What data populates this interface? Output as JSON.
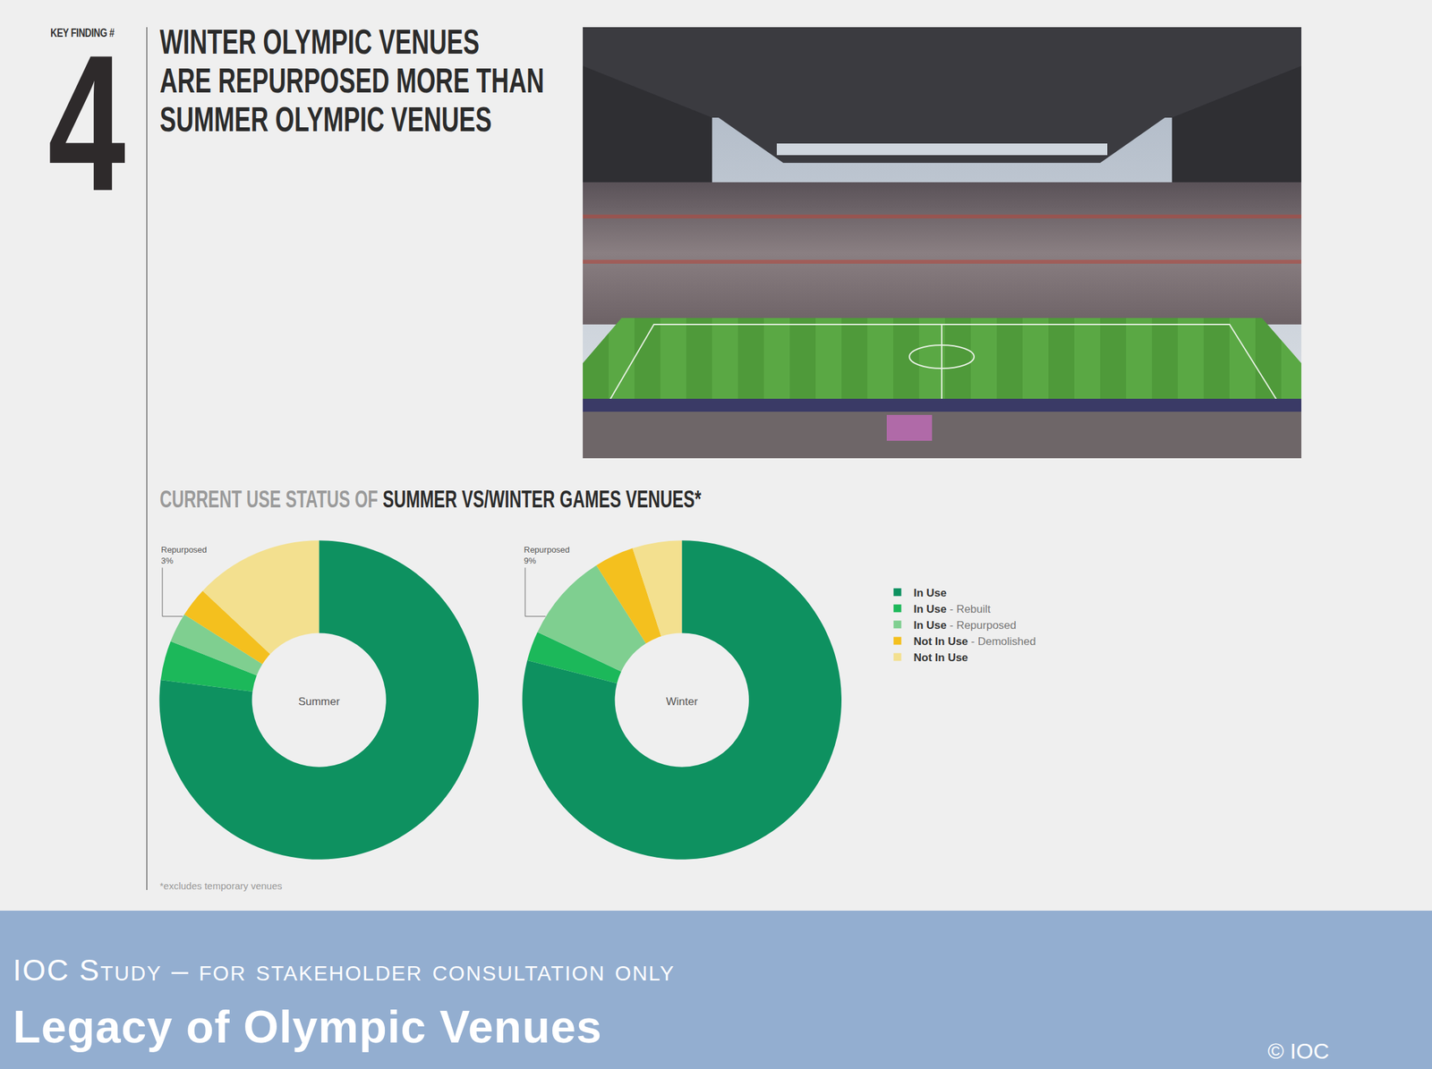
{
  "slide": {
    "key_finding_label": "KEY FINDING #",
    "key_finding_number": "4",
    "title": [
      "WINTER OLYMPIC VENUES",
      "ARE REPURPOSED MORE THAN",
      "SUMMER OLYMPIC VENUES"
    ],
    "subtitle": [
      "CURRENT USE STATUS OF ",
      "SUMMER VS/WINTER GAMES VENUES*"
    ],
    "footnote": "*excludes temporary venues",
    "footer": {
      "line1": "IOC Study – for stakeholder consultation only",
      "line2": "Legacy of Olympic Venues",
      "copyright": "© IOC"
    }
  },
  "chart_data": [
    {
      "type": "donut",
      "title": "Summer",
      "categories": [
        "In Use",
        "In Use - Rebuilt",
        "In Use - Repurposed",
        "Not In Use - Demolished",
        "Not In Use"
      ],
      "values": [
        77,
        4,
        3,
        3,
        13
      ],
      "value_labels": [
        null,
        null,
        "3%",
        null,
        null
      ],
      "annotations": [
        "Repurposed"
      ],
      "colors": [
        "#0e9160",
        "#1cb85a",
        "#7fcf90",
        "#f4c01e",
        "#f3e08f"
      ],
      "legend": "right"
    },
    {
      "type": "donut",
      "title": "Winter",
      "categories": [
        "In Use",
        "In Use - Rebuilt",
        "In Use - Repurposed",
        "Not In Use - Demolished",
        "Not In Use"
      ],
      "values": [
        79,
        3,
        9,
        4,
        5
      ],
      "value_labels": [
        null,
        null,
        "9%",
        null,
        null
      ],
      "annotations": [
        "Repurposed"
      ],
      "colors": [
        "#0e9160",
        "#1cb85a",
        "#7fcf90",
        "#f4c01e",
        "#f3e08f"
      ],
      "legend": "right"
    }
  ]
}
